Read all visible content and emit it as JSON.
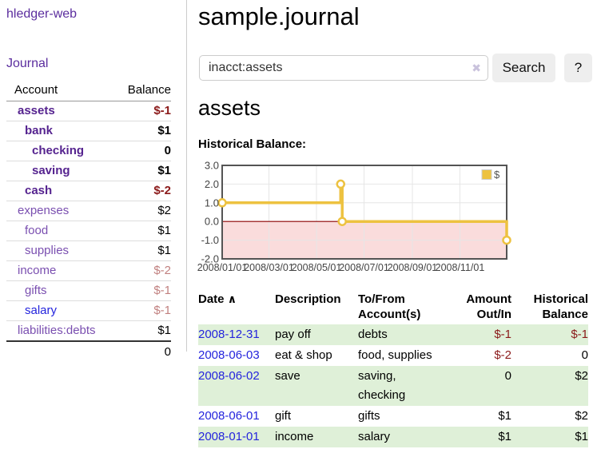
{
  "app": {
    "brand": "hledger-web",
    "nav_journal": "Journal"
  },
  "sidebar": {
    "headers": [
      "Account",
      "Balance"
    ],
    "rows": [
      {
        "account": "assets",
        "balance": "$-1",
        "depth": 1,
        "bold": true,
        "neg": "dark"
      },
      {
        "account": "bank",
        "balance": "$1",
        "depth": 2,
        "bold": true,
        "neg": ""
      },
      {
        "account": "checking",
        "balance": "0",
        "depth": 3,
        "bold": true,
        "neg": ""
      },
      {
        "account": "saving",
        "balance": "$1",
        "depth": 3,
        "bold": true,
        "neg": ""
      },
      {
        "account": "cash",
        "balance": "$-2",
        "depth": 2,
        "bold": true,
        "neg": "dark"
      },
      {
        "account": "expenses",
        "balance": "$2",
        "depth": 1,
        "bold": false,
        "neg": ""
      },
      {
        "account": "food",
        "balance": "$1",
        "depth": 2,
        "bold": false,
        "neg": ""
      },
      {
        "account": "supplies",
        "balance": "$1",
        "depth": 2,
        "bold": false,
        "neg": ""
      },
      {
        "account": "income",
        "balance": "$-2",
        "depth": 1,
        "bold": false,
        "neg": "light"
      },
      {
        "account": "gifts",
        "balance": "$-1",
        "depth": 2,
        "bold": false,
        "neg": "light"
      },
      {
        "account": "salary",
        "balance": "$-1",
        "depth": 2,
        "bold": false,
        "neg": "light",
        "link": "blue"
      },
      {
        "account": "liabilities:debts",
        "balance": "$1",
        "depth": 1,
        "bold": false,
        "neg": ""
      }
    ],
    "total": "0"
  },
  "header": {
    "title": "sample.journal"
  },
  "search": {
    "value": "inacct:assets",
    "clear_icon": "✖",
    "button": "Search",
    "help_button": "?"
  },
  "account_page": {
    "heading": "assets",
    "chart_label": "Historical Balance:"
  },
  "chart_data": {
    "type": "line",
    "title": "Historical Balance:",
    "series": [
      {
        "name": "$",
        "color": "#edc240",
        "step": "after",
        "marker": "open-circle",
        "points": [
          {
            "date": "2008-01-01",
            "value": 1
          },
          {
            "date": "2008-06-01",
            "value": 2
          },
          {
            "date": "2008-06-03",
            "value": 0
          },
          {
            "date": "2008-12-31",
            "value": -1
          }
        ]
      }
    ],
    "xdomain": [
      "2008-01-01",
      "2008-12-31"
    ],
    "xticks": [
      "2008/01/01",
      "2008/03/01",
      "2008/05/01",
      "2008/07/01",
      "2008/09/01",
      "2008/11/01"
    ],
    "ylim": [
      -2,
      3
    ],
    "yticks": [
      "3.0",
      "2.0",
      "1.0",
      "0.0",
      "-1.0",
      "-2.0"
    ],
    "legend": {
      "label": "$",
      "position": "ne"
    },
    "grid": true,
    "grid_color": "#e6e6e6",
    "border_color": "#545454",
    "zero_line_color": "#8b0000",
    "negative_region_color": "#fadcdc",
    "tick_color": "#444444"
  },
  "transactions": {
    "headers": {
      "date": "Date",
      "sort_icon": "∧",
      "description": "Description",
      "tofrom_line1": "To/From",
      "tofrom_line2": "Account(s)",
      "amount_line1": "Amount",
      "amount_line2": "Out/In",
      "balance_line1": "Historical",
      "balance_line2": "Balance"
    },
    "rows": [
      {
        "date": "2008-12-31",
        "description": "pay off",
        "accounts": "debts",
        "amount": "$-1",
        "balance": "$-1",
        "amount_neg": true,
        "balance_neg": true,
        "shaded": true
      },
      {
        "date": "2008-06-03",
        "description": "eat & shop",
        "accounts": "food, supplies",
        "amount": "$-2",
        "balance": "0",
        "amount_neg": true,
        "balance_neg": false,
        "shaded": false
      },
      {
        "date": "2008-06-02",
        "description": "save",
        "accounts": "saving,\nchecking",
        "amount": "0",
        "balance": "$2",
        "amount_neg": false,
        "balance_neg": false,
        "shaded": true
      },
      {
        "date": "2008-06-01",
        "description": "gift",
        "accounts": "gifts",
        "amount": "$1",
        "balance": "$2",
        "amount_neg": false,
        "balance_neg": false,
        "shaded": false
      },
      {
        "date": "2008-01-01",
        "description": "income",
        "accounts": "salary",
        "amount": "$1",
        "balance": "$1",
        "amount_neg": false,
        "balance_neg": false,
        "shaded": true
      }
    ]
  }
}
